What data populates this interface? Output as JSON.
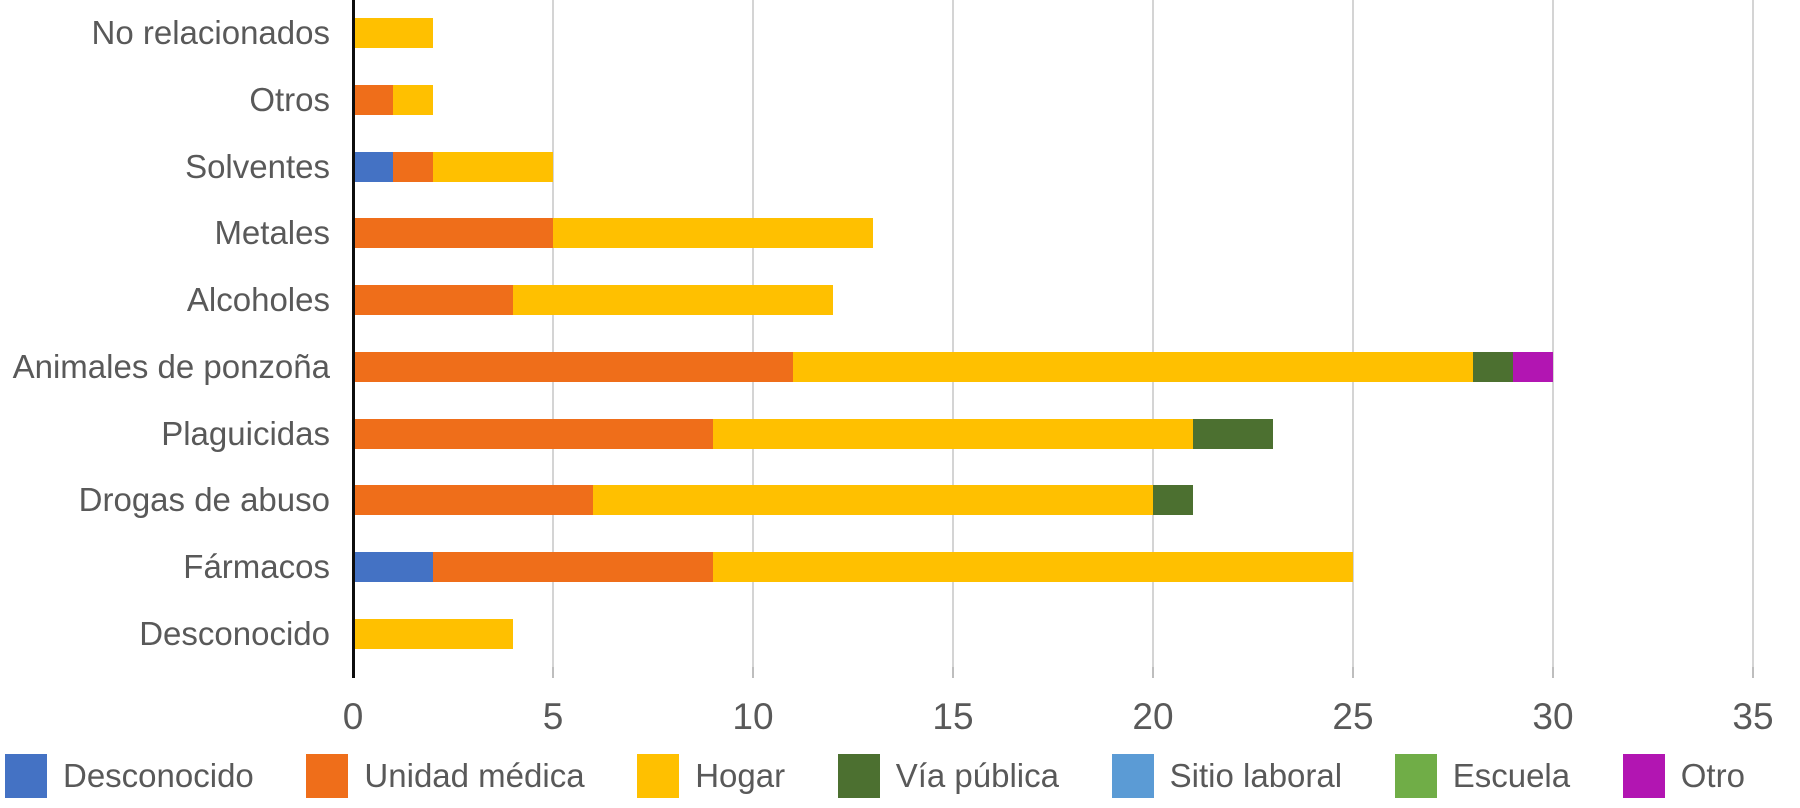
{
  "chart_data": {
    "type": "bar",
    "orientation": "horizontal-stacked",
    "title": "",
    "xlabel": "",
    "ylabel": "",
    "grid": "vertical",
    "legend_position": "bottom",
    "xlim": [
      0,
      35
    ],
    "x_ticks": [
      0,
      5,
      10,
      15,
      20,
      25,
      30,
      35
    ],
    "categories": [
      "No relacionados",
      "Otros",
      "Solventes",
      "Metales",
      "Alcoholes",
      "Animales de ponzoña",
      "Plaguicidas",
      "Drogas de abuso",
      "Fármacos",
      "Desconocido"
    ],
    "series": [
      {
        "name": "Desconocido",
        "color": "#4472C4",
        "values": [
          0,
          0,
          1,
          0,
          0,
          0,
          0,
          0,
          2,
          0
        ]
      },
      {
        "name": "Unidad médica",
        "color": "#EF6E1A",
        "values": [
          0,
          1,
          1,
          5,
          4,
          11,
          9,
          6,
          7,
          0
        ]
      },
      {
        "name": "Hogar",
        "color": "#FFC000",
        "values": [
          2,
          1,
          3,
          8,
          8,
          17,
          12,
          14,
          16,
          4
        ]
      },
      {
        "name": "Vía pública",
        "color": "#4C7030",
        "values": [
          0,
          0,
          0,
          0,
          0,
          1,
          2,
          1,
          0,
          0
        ]
      },
      {
        "name": "Sitio laboral",
        "color": "#5B9BD5",
        "values": [
          0,
          0,
          0,
          0,
          0,
          0,
          0,
          0,
          0,
          0
        ]
      },
      {
        "name": "Escuela",
        "color": "#70AD47",
        "values": [
          0,
          0,
          0,
          0,
          0,
          0,
          0,
          0,
          0,
          0
        ]
      },
      {
        "name": "Otro",
        "color": "#B215B2",
        "values": [
          0,
          0,
          0,
          0,
          0,
          1,
          0,
          0,
          0,
          0
        ]
      }
    ],
    "colors": {
      "text": "#595959",
      "gridline": "#D4D4D4",
      "axis_line": "#0D0D0D",
      "tick": "#BEBEBE",
      "background": "#FFFFFF"
    }
  }
}
